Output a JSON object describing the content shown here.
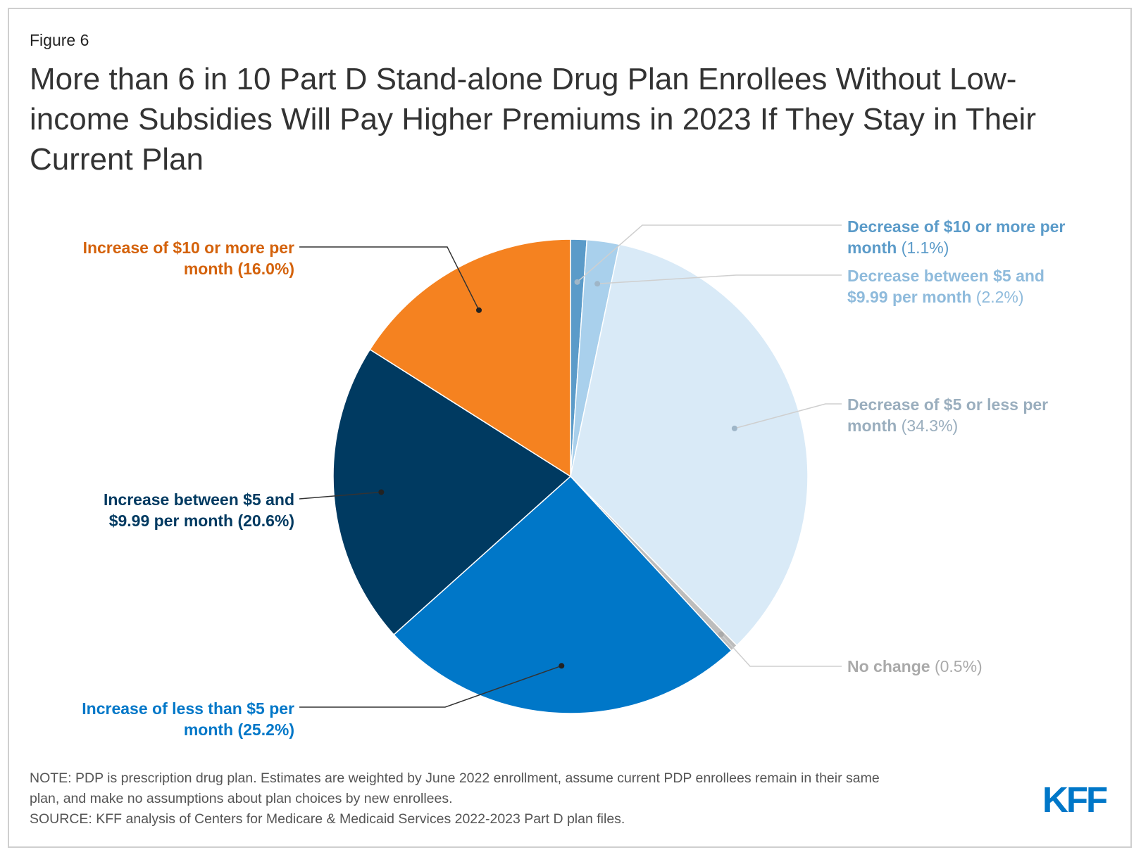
{
  "figure_label": "Figure 6",
  "title": "More than 6 in 10 Part D Stand-alone Drug Plan Enrollees Without Low-income Subsidies Will Pay Higher Premiums in 2023 If They Stay in Their Current Plan",
  "chart_data": {
    "type": "pie",
    "slices": [
      {
        "label": "Decrease of $10 or more per month",
        "pct_text": "(1.1%)",
        "value": 1.1,
        "color": "#5b9bc9",
        "pct_bold": false
      },
      {
        "label": "Decrease between $5 and $9.99 per month",
        "pct_text": "(2.2%)",
        "value": 2.2,
        "color": "#a9d0ec",
        "pct_bold": false
      },
      {
        "label": "Decrease of $5 or less per month",
        "pct_text": "(34.3%)",
        "value": 34.3,
        "color": "#d9eaf7",
        "pct_bold": false
      },
      {
        "label": "No change",
        "pct_text": "(0.5%)",
        "value": 0.5,
        "color": "#bdbdbd",
        "pct_bold": false
      },
      {
        "label": "Increase of less than $5 per month",
        "pct_text": "(25.2%)",
        "value": 25.2,
        "color": "#0077c8",
        "pct_bold": true
      },
      {
        "label": "Increase between $5 and $9.99 per month",
        "pct_text": "(20.6%)",
        "value": 20.6,
        "color": "#003a61",
        "pct_bold": true
      },
      {
        "label": "Increase of $10 or more per month",
        "pct_text": "(16.0%)",
        "value": 16.0,
        "color": "#f58220",
        "pct_bold": true
      }
    ],
    "start": "12 o'clock",
    "direction": "clockwise"
  },
  "labels": {
    "dec10_a": "Decrease of $10 or more per",
    "dec10_b": "month",
    "dec10_pct": "(1.1%)",
    "dec5_a": "Decrease between $5 and",
    "dec5_b": "$9.99 per month",
    "dec5_pct": "(2.2%)",
    "dec_less_a": "Decrease of $5 or less per",
    "dec_less_b": "month",
    "dec_less_pct": "(34.3%)",
    "nochange": "No change",
    "nochange_pct": "(0.5%)",
    "inc_less_a": "Increase of less than $5 per",
    "inc_less_b": "month (25.2%)",
    "inc5_a": "Increase between $5 and",
    "inc5_b": "$9.99 per month (20.6%)",
    "inc10_a": "Increase of $10 or more per",
    "inc10_b": "month (16.0%)"
  },
  "label_colors": {
    "dec10": "#5b9bc9",
    "dec5": "#8fbbdc",
    "dec_less": "#9aaebe",
    "nochange": "#aaaaaa",
    "inc_less": "#0077c8",
    "inc5": "#003a61",
    "inc10": "#d4620b"
  },
  "notes": {
    "note_line1": "NOTE: PDP is prescription drug plan. Estimates are weighted by June 2022 enrollment, assume current PDP enrollees remain in their same",
    "note_line2": "plan, and make no assumptions about plan choices by new enrollees.",
    "source": "SOURCE: KFF analysis of Centers for Medicare & Medicaid Services 2022-2023 Part D plan files."
  },
  "logo_text": "KFF",
  "logo_color": "#0077c8"
}
